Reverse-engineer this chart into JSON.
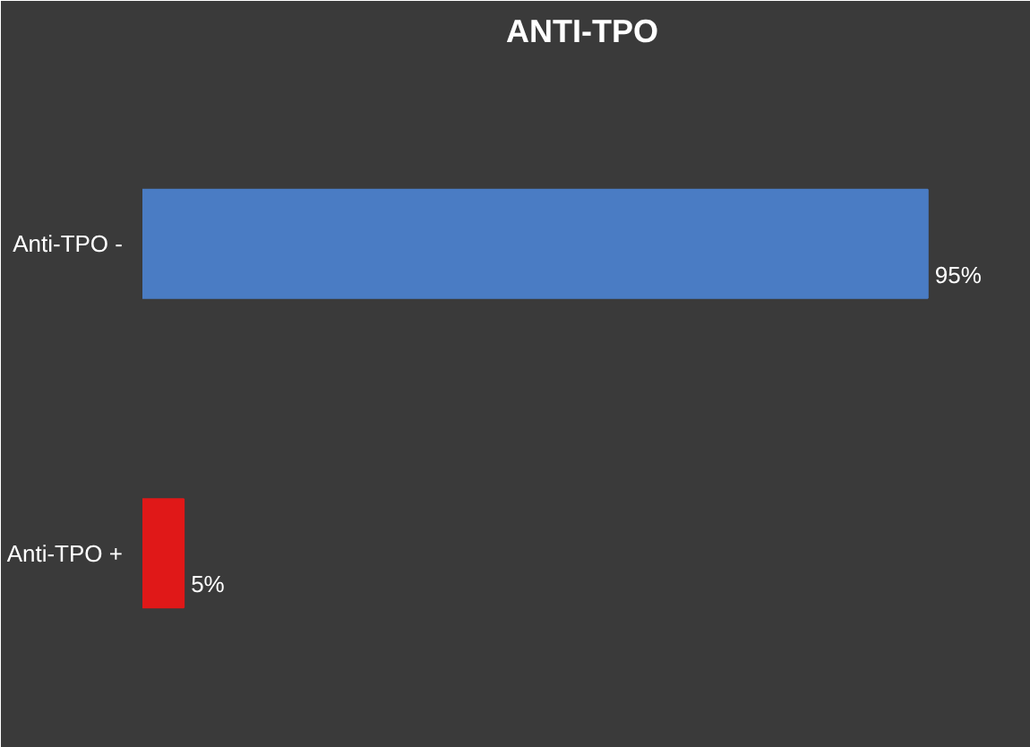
{
  "chart_data": {
    "type": "bar",
    "orientation": "horizontal",
    "title": "ANTI-TPO",
    "categories": [
      "Anti-TPO -",
      "Anti-TPO +"
    ],
    "values": [
      95,
      5
    ],
    "colors": [
      "#4a7cc4",
      "#e01818"
    ],
    "value_labels": [
      "95%",
      "5%"
    ],
    "grid": false
  }
}
